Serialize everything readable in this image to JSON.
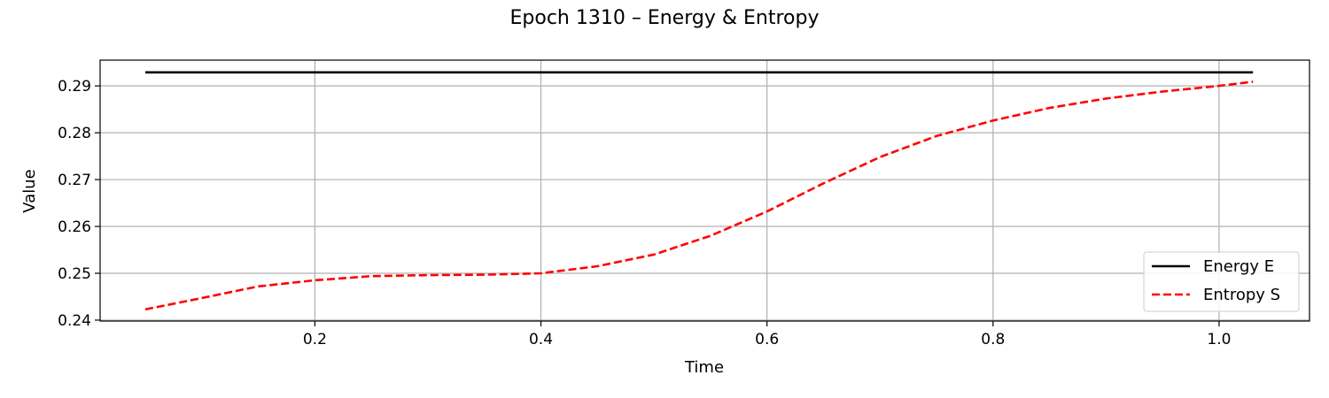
{
  "chart_data": {
    "type": "line",
    "title": "Epoch 1310 – Energy & Entropy",
    "xlabel": "Time",
    "ylabel": "Value",
    "xlim": [
      0.01,
      1.08
    ],
    "ylim": [
      0.2398,
      0.2955
    ],
    "xticks": [
      0.2,
      0.4,
      0.6,
      0.8,
      1.0
    ],
    "xtick_labels": [
      "0.2",
      "0.4",
      "0.6",
      "0.8",
      "1.0"
    ],
    "yticks": [
      0.24,
      0.25,
      0.26,
      0.27,
      0.28,
      0.29
    ],
    "ytick_labels": [
      "0.24",
      "0.25",
      "0.26",
      "0.27",
      "0.28",
      "0.29"
    ],
    "grid": true,
    "legend_position": "bottom-right",
    "series": [
      {
        "name": "Energy E",
        "color": "#000000",
        "style": "solid",
        "x": [
          0.05,
          1.03
        ],
        "y": [
          0.2929,
          0.2929
        ]
      },
      {
        "name": "Entropy S",
        "color": "#ff0000",
        "style": "dashed",
        "x": [
          0.05,
          0.1,
          0.15,
          0.2,
          0.25,
          0.3,
          0.35,
          0.4,
          0.45,
          0.5,
          0.55,
          0.6,
          0.65,
          0.7,
          0.75,
          0.8,
          0.85,
          0.9,
          0.95,
          1.0,
          1.03
        ],
        "y": [
          0.2423,
          0.2447,
          0.2472,
          0.2485,
          0.2494,
          0.2496,
          0.2497,
          0.25,
          0.2515,
          0.254,
          0.258,
          0.2632,
          0.2692,
          0.2748,
          0.2793,
          0.2826,
          0.2853,
          0.2873,
          0.2888,
          0.29,
          0.2909
        ]
      }
    ]
  }
}
